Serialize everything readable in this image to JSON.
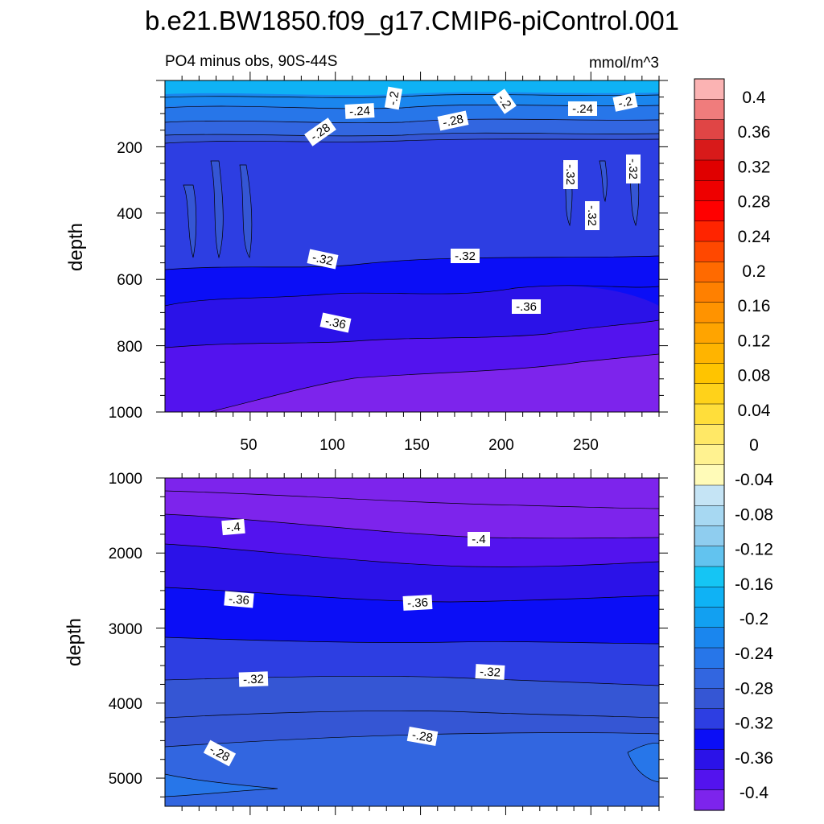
{
  "chart_data": {
    "type": "contour",
    "title": "b.e21.BW1850.f09_g17.CMIP6-piControl.001",
    "subtitle_left": "PO4 minus obs, 90S-44S",
    "units": "mmol/m^3",
    "panels": [
      {
        "name": "upper",
        "ylabel": "depth",
        "yticks": [
          "200",
          "400",
          "600",
          "800",
          "1000"
        ],
        "xticks": [
          "50",
          "100",
          "150",
          "200",
          "250"
        ],
        "ylim": [
          0,
          1000
        ],
        "xlim": [
          0,
          290
        ],
        "contour_labels": [
          "-.2",
          "-.24",
          "-.28",
          "-.2",
          "-.28",
          "-.24",
          "-.2",
          "-.32",
          "-.32",
          "-.32",
          "-.32",
          "-.32",
          "-.36",
          "-.36"
        ]
      },
      {
        "name": "lower",
        "ylabel": "depth",
        "yticks": [
          "1000",
          "2000",
          "3000",
          "4000",
          "5000"
        ],
        "ylim": [
          1000,
          5375
        ],
        "xlim": [
          0,
          290
        ],
        "contour_labels": [
          "-.4",
          "-.4",
          "-.36",
          "-.36",
          "-.32",
          "-.32",
          "-.28",
          "-.28"
        ]
      }
    ],
    "colorbar": {
      "labels": [
        "0.4",
        "0.36",
        "0.32",
        "0.28",
        "0.24",
        "0.2",
        "0.16",
        "0.12",
        "0.08",
        "0.04",
        "0",
        "-0.04",
        "-0.08",
        "-0.12",
        "-0.16",
        "-0.2",
        "-0.24",
        "-0.28",
        "-0.32",
        "-0.36",
        "-0.4"
      ],
      "colors": [
        "#fbb3b3",
        "#f07c7c",
        "#e04545",
        "#d81a1a",
        "#e00000",
        "#ee0000",
        "#ff0000",
        "#ff2400",
        "#ff4800",
        "#ff6a00",
        "#ff8000",
        "#ff9300",
        "#ffa400",
        "#ffb400",
        "#ffc400",
        "#ffd21a",
        "#ffde3a",
        "#ffe866",
        "#fff290",
        "#fffbb8",
        "#c5e4f5",
        "#a7d8f2",
        "#8fcdef",
        "#62c3ef",
        "#15c5f4",
        "#0fb2f5",
        "#12a0f1",
        "#1a86ee",
        "#2776e9",
        "#3266e0",
        "#3556d4",
        "#2d3ee2",
        "#0b0ef6",
        "#2b12e8",
        "#5313ee",
        "#7d24ec"
      ]
    }
  }
}
